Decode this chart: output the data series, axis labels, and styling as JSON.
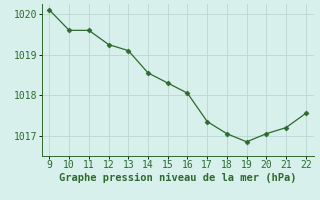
{
  "x": [
    9,
    10,
    11,
    12,
    13,
    14,
    15,
    16,
    17,
    18,
    19,
    20,
    21,
    22
  ],
  "y": [
    1020.1,
    1019.6,
    1019.6,
    1019.25,
    1019.1,
    1018.55,
    1018.3,
    1018.05,
    1017.35,
    1017.05,
    1016.85,
    1017.05,
    1017.2,
    1017.55
  ],
  "line_color": "#2d6a2d",
  "marker": "D",
  "marker_size": 2.5,
  "bg_color": "#d8f0ec",
  "grid_color": "#b8d8d0",
  "xlabel": "Graphe pression niveau de la mer (hPa)",
  "xlabel_color": "#2d6a2d",
  "xlabel_fontsize": 7.5,
  "tick_color": "#2d6a2d",
  "tick_fontsize": 7,
  "ylim": [
    1016.5,
    1020.25
  ],
  "xlim": [
    8.6,
    22.4
  ],
  "yticks": [
    1017,
    1018,
    1019,
    1020
  ],
  "xticks": [
    9,
    10,
    11,
    12,
    13,
    14,
    15,
    16,
    17,
    18,
    19,
    20,
    21,
    22
  ]
}
